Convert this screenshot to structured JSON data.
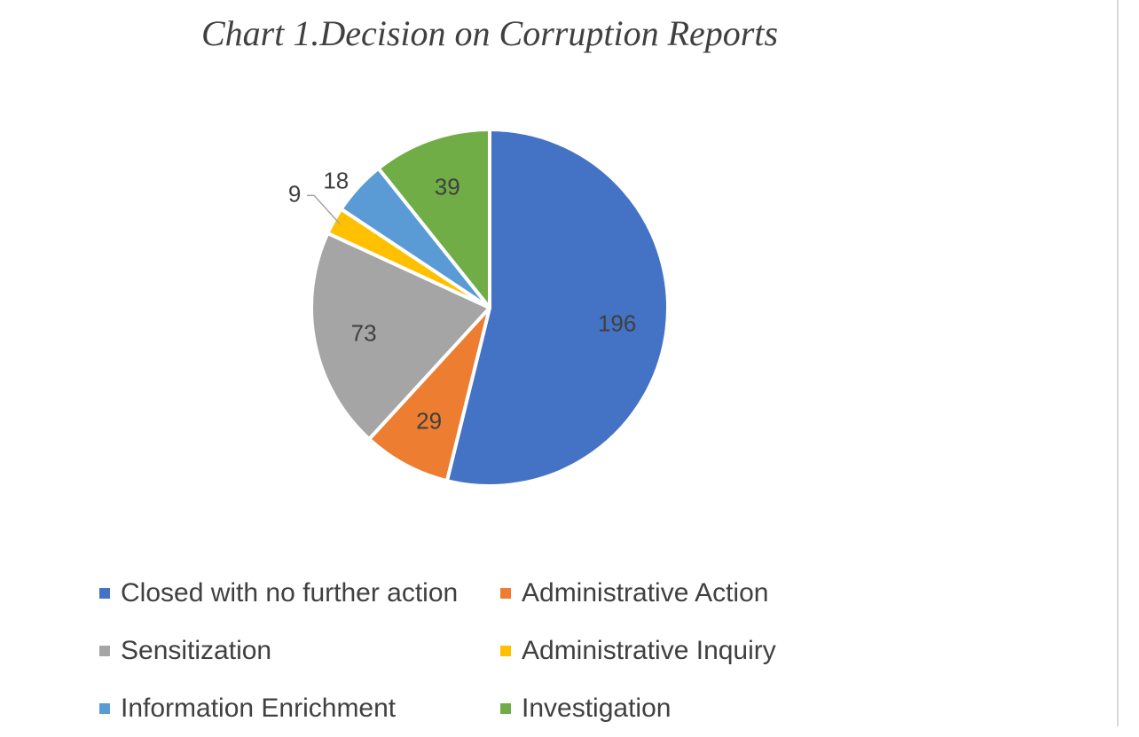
{
  "chart_data": {
    "type": "pie",
    "title": "Chart 1.Decision on Corruption Reports",
    "slices": [
      {
        "name": "Closed with no further action",
        "value": 196,
        "color": "#4472C4"
      },
      {
        "name": "Administrative Action",
        "value": 29,
        "color": "#ED7D31"
      },
      {
        "name": "Sensitization",
        "value": 73,
        "color": "#A5A5A5"
      },
      {
        "name": "Administrative Inquiry",
        "value": 9,
        "color": "#FFC000"
      },
      {
        "name": "Information Enrichment",
        "value": 18,
        "color": "#5B9BD5"
      },
      {
        "name": "Investigation",
        "value": 39,
        "color": "#70AD47"
      }
    ],
    "legend_position": "bottom"
  }
}
